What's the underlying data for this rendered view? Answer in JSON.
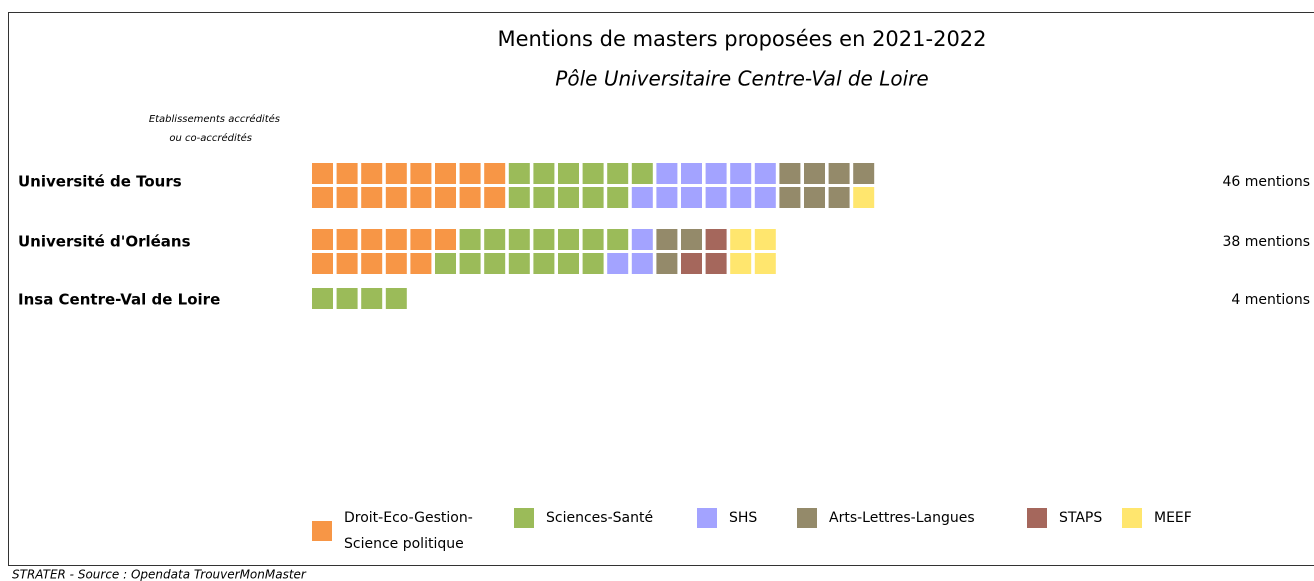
{
  "chart_data": {
    "type": "waffle",
    "title": "Mentions de masters proposées en 2021-2022",
    "subtitle": "Pôle Universitaire Centre-Val de Loire",
    "note": [
      "Etablissements accrédités",
      "ou co-accrédités"
    ],
    "categories": [
      "Université de Tours",
      "Université d'Orléans",
      "Insa Centre-Val de Loire"
    ],
    "series": [
      {
        "name": "Droit-Eco-Gestion-Science politique",
        "color": "#f79646",
        "values": [
          16,
          11,
          0
        ]
      },
      {
        "name": "Sciences-Santé",
        "color": "#9bbb59",
        "values": [
          11,
          14,
          4
        ]
      },
      {
        "name": "SHS",
        "color": "#a3a3ff",
        "values": [
          11,
          3,
          0
        ]
      },
      {
        "name": "Arts-Lettres-Langues",
        "color": "#948a6a",
        "values": [
          7,
          3,
          0
        ]
      },
      {
        "name": "STAPS",
        "color": "#a5675c",
        "values": [
          0,
          3,
          0
        ]
      },
      {
        "name": "MEEF",
        "color": "#ffe66e",
        "values": [
          1,
          4,
          0
        ]
      }
    ],
    "totals": [
      46,
      38,
      4
    ],
    "total_labels": [
      "46 mentions",
      "38 mentions",
      "4 mentions"
    ],
    "source": "STRATER - Source : Opendata TrouverMonMaster"
  }
}
